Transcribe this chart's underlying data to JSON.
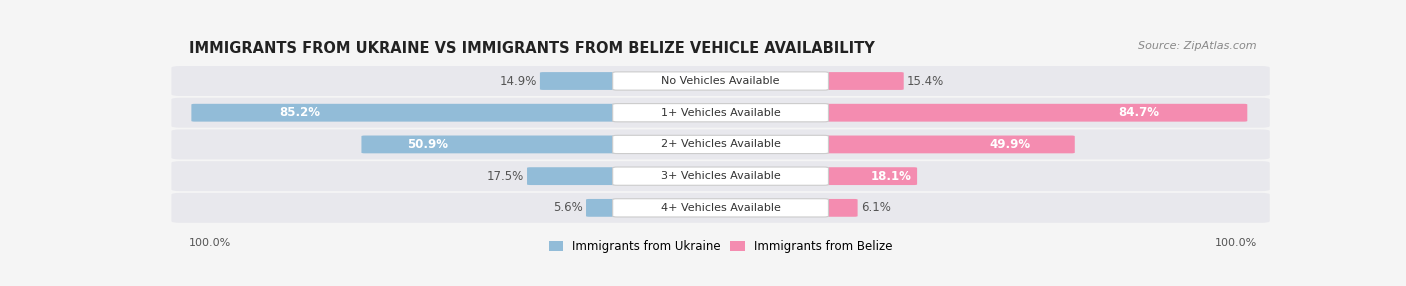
{
  "title": "IMMIGRANTS FROM UKRAINE VS IMMIGRANTS FROM BELIZE VEHICLE AVAILABILITY",
  "source": "Source: ZipAtlas.com",
  "categories": [
    "No Vehicles Available",
    "1+ Vehicles Available",
    "2+ Vehicles Available",
    "3+ Vehicles Available",
    "4+ Vehicles Available"
  ],
  "ukraine_values": [
    14.9,
    85.2,
    50.9,
    17.5,
    5.6
  ],
  "belize_values": [
    15.4,
    84.7,
    49.9,
    18.1,
    6.1
  ],
  "ukraine_color": "#92bcd8",
  "belize_color": "#f48cb0",
  "bg_color": "#f5f5f5",
  "row_bg_color": "#e8e8ed",
  "row_bg_color_alt": "#dedee6",
  "title_color": "#222222",
  "source_color": "#888888",
  "label_outside_color": "#555555",
  "label_inside_color": "#ffffff",
  "cat_label_color": "#333333",
  "footer_color": "#555555",
  "title_fontsize": 10.5,
  "source_fontsize": 8,
  "bar_label_fontsize": 8.5,
  "category_fontsize": 8,
  "footer_fontsize": 8,
  "legend_fontsize": 8.5,
  "figsize": [
    14.06,
    2.86
  ],
  "dpi": 100
}
